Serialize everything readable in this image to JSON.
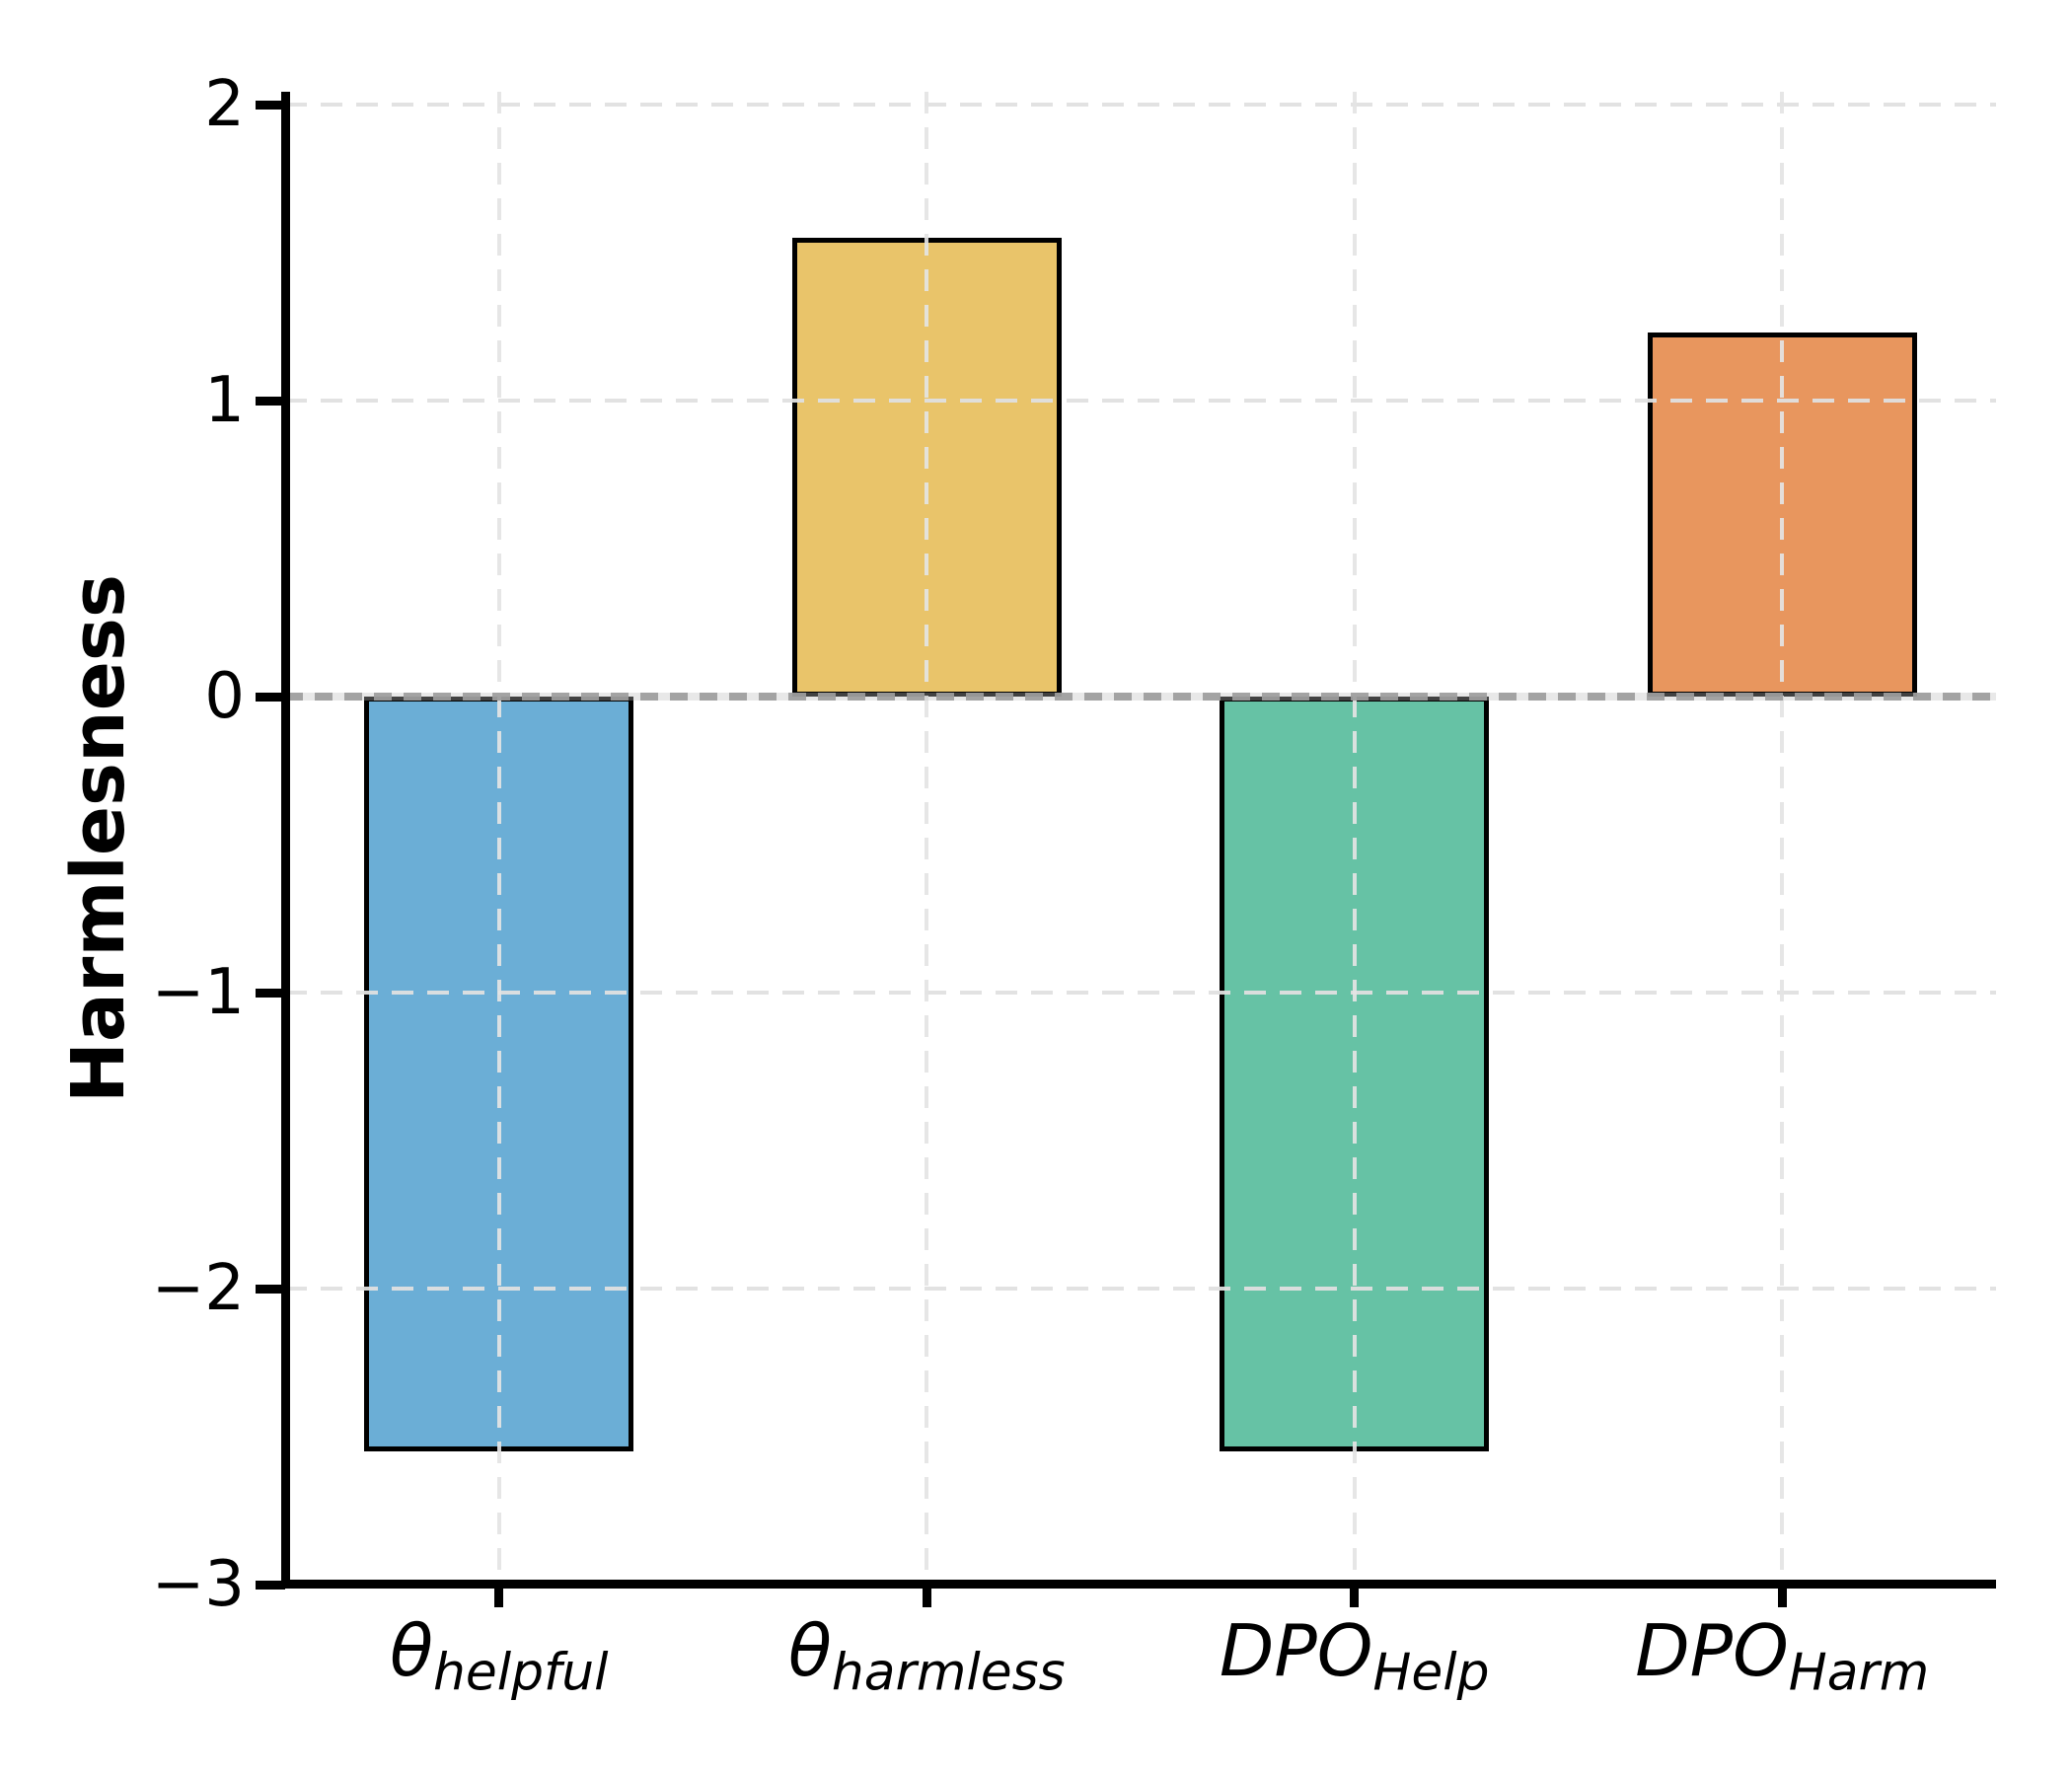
{
  "figure": {
    "background": "#FFFFFF",
    "y_axis": {
      "label": "Harmlesness",
      "tick_labels": [
        "2",
        "1",
        "0",
        "−1",
        "−2",
        "−3"
      ],
      "tick_values": [
        2,
        1,
        0,
        -1,
        -2,
        -3
      ],
      "grid_line_values": [
        2,
        1,
        -1,
        -2
      ]
    },
    "x_axis": {
      "labels": [
        {
          "base": "θ",
          "sub": "helpful"
        },
        {
          "base": "θ",
          "sub": "harmless"
        },
        {
          "base": "DPO",
          "sub": "Help"
        },
        {
          "base": "DPO",
          "sub": "Harm"
        }
      ]
    }
  },
  "chart_data": {
    "type": "bar",
    "title": "",
    "xlabel": "",
    "ylabel": "Harmlesness",
    "categories": [
      "θ_helpful",
      "θ_harmless",
      "DPO_Help",
      "DPO_Harm"
    ],
    "values": [
      -2.55,
      1.55,
      -2.55,
      1.23
    ],
    "ylim": [
      -3,
      2.04
    ],
    "yticks": [
      2,
      1,
      0,
      -1,
      -2,
      -3
    ],
    "grid": "dashed, on x and y, drawn above bars",
    "zero_line": "solid gray at y=0",
    "legend": "none",
    "bar_colors": [
      "#6BAED6",
      "#E9C46A",
      "#66C2A5",
      "#E8965E"
    ],
    "bar_edge_color": "#000000",
    "grid_color": "#E3E3E3",
    "zero_line_color": "#9E9E9E"
  }
}
